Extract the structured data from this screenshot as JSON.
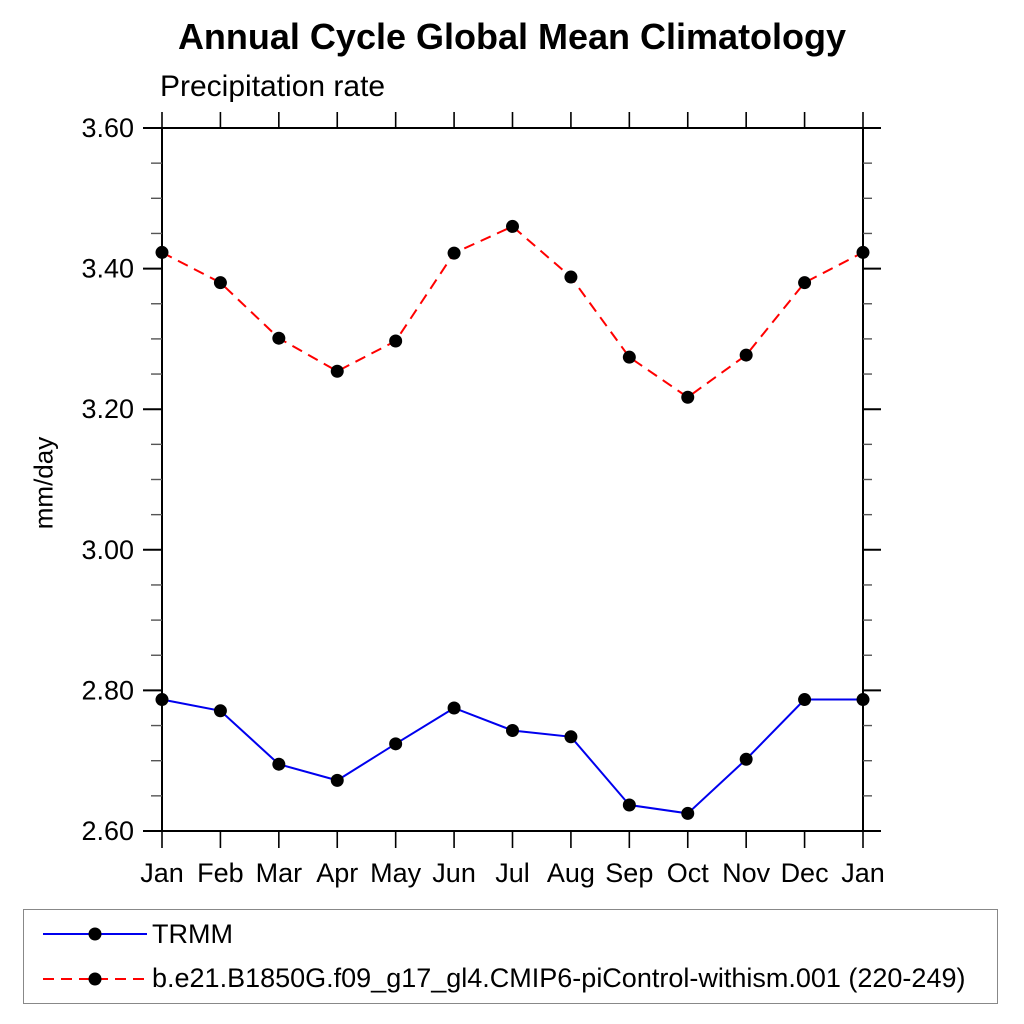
{
  "chart_data": {
    "type": "line",
    "title": "Annual Cycle Global Mean Climatology",
    "subtitle": "Precipitation rate",
    "ylabel": "mm/day",
    "xlabel": "",
    "categories": [
      "Jan",
      "Feb",
      "Mar",
      "Apr",
      "May",
      "Jun",
      "Jul",
      "Aug",
      "Sep",
      "Oct",
      "Nov",
      "Dec",
      "Jan"
    ],
    "y_ticks": [
      "2.60",
      "2.80",
      "3.00",
      "3.20",
      "3.40",
      "3.60"
    ],
    "ylim": [
      2.6,
      3.6
    ],
    "minor_tick_step": 0.05,
    "grid": "off",
    "legend_position": "bottom-box",
    "frame_color": "#000000",
    "marker_color": "#000000",
    "series": [
      {
        "name": "TRMM",
        "color": "#0000ee",
        "style": "solid",
        "marker": "filled-circle",
        "values": [
          2.787,
          2.771,
          2.695,
          2.672,
          2.724,
          2.775,
          2.743,
          2.734,
          2.637,
          2.625,
          2.702,
          2.787,
          2.787
        ]
      },
      {
        "name": "b.e21.B1850G.f09_g17_gl4.CMIP6-piControl-withism.001 (220-249)",
        "color": "#ff0000",
        "style": "dashed",
        "marker": "filled-circle",
        "values": [
          3.423,
          3.38,
          3.301,
          3.254,
          3.297,
          3.422,
          3.46,
          3.388,
          3.274,
          3.217,
          3.277,
          3.38,
          3.423
        ]
      }
    ]
  }
}
